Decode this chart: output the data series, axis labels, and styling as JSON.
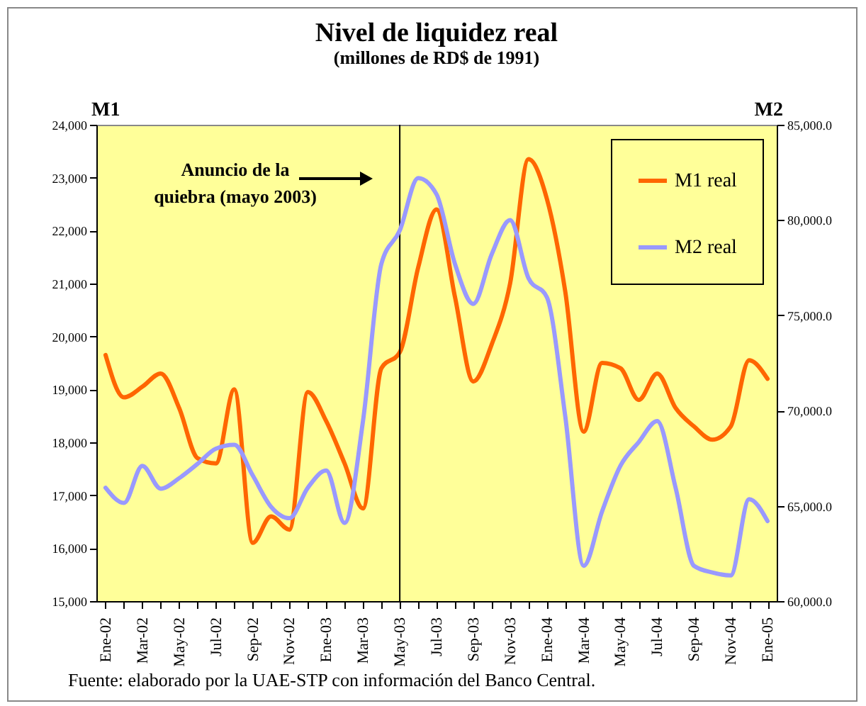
{
  "chart_data": {
    "type": "line",
    "title": "Nivel de liquidez real",
    "subtitle": "(millones de RD$ de 1991)",
    "ylabel": "M1",
    "y2label": "M2",
    "categories": [
      "Ene-02",
      null,
      "Mar-02",
      null,
      "May-02",
      null,
      "Jul-02",
      null,
      "Sep-02",
      null,
      "Nov-02",
      null,
      "Ene-03",
      null,
      "Mar-03",
      null,
      "May-03",
      null,
      "Jul-03",
      null,
      "Sep-03",
      null,
      "Nov-03",
      null,
      "Ene-04",
      null,
      "Mar-04",
      null,
      "May-04",
      null,
      "Jul-04",
      null,
      "Sep-04",
      null,
      "Nov-04",
      null,
      "Ene-05"
    ],
    "series": [
      {
        "name": "M1 real",
        "color": "#ff6600",
        "values": [
          19650,
          18850,
          19050,
          19300,
          18650,
          17700,
          17600,
          19000,
          16100,
          16600,
          16350,
          18950,
          18400,
          17600,
          16750,
          19400,
          19700,
          21300,
          22400,
          20750,
          19150,
          19850,
          21000,
          23350,
          22600,
          20850,
          18200,
          19500,
          19400,
          18800,
          19300,
          18650,
          18300,
          18050,
          18300,
          19550,
          19200
        ]
      },
      {
        "name": "M2 real",
        "color": "#9999ff",
        "axis": "y2",
        "values": [
          65950,
          65150,
          67100,
          65900,
          66450,
          67200,
          68000,
          68200,
          66600,
          64950,
          64350,
          65950,
          66850,
          64100,
          69450,
          77700,
          79450,
          82200,
          81350,
          77700,
          75600,
          78200,
          80000,
          76950,
          75950,
          69700,
          61850,
          64700,
          67100,
          68350,
          69450,
          65950,
          61850,
          61500,
          61350,
          65350,
          64200
        ]
      }
    ],
    "ylim": [
      15000,
      24000
    ],
    "yticks": [
      {
        "value": 15000,
        "label": "15,000"
      },
      {
        "value": 16000,
        "label": "16,000"
      },
      {
        "value": 17000,
        "label": "17,000"
      },
      {
        "value": 18000,
        "label": "18,000"
      },
      {
        "value": 19000,
        "label": "19,000"
      },
      {
        "value": 20000,
        "label": "20,000"
      },
      {
        "value": 21000,
        "label": "21,000"
      },
      {
        "value": 22000,
        "label": "22,000"
      },
      {
        "value": 23000,
        "label": "23,000"
      },
      {
        "value": 24000,
        "label": "24,000"
      }
    ],
    "y2lim": [
      60000,
      85000
    ],
    "y2ticks": [
      {
        "value": 60000,
        "label": "60,000.0"
      },
      {
        "value": 65000,
        "label": "65,000.0"
      },
      {
        "value": 70000,
        "label": "70,000.0"
      },
      {
        "value": 75000,
        "label": "75,000.0"
      },
      {
        "value": 80000,
        "label": "80,000.0"
      },
      {
        "value": 85000,
        "label": "85,000.0"
      }
    ],
    "ref_lines": [
      {
        "axis": "x",
        "value": "May-03",
        "color": "#000000"
      }
    ],
    "annotations": [
      "Anuncio de la quiebra (mayo 2003)",
      "Fuente: elaborado por la UAE-STP con información del Banco Central."
    ],
    "legend": "top right",
    "grid": false,
    "marker": "none",
    "line_style": "solid"
  }
}
